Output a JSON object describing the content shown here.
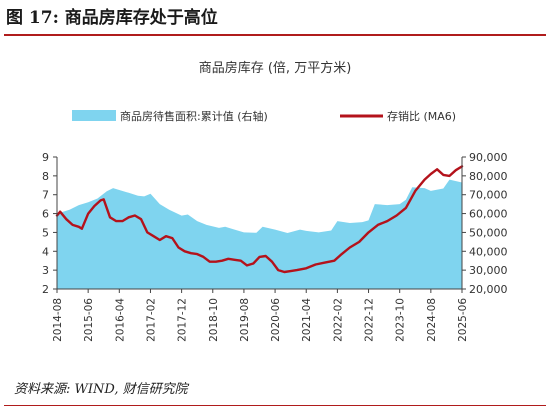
{
  "figure": {
    "title": "图 17:  商品房库存处于高位",
    "source": "资料来源: WIND, 财信研究院"
  },
  "colors": {
    "area": "#7fd4ef",
    "line": "#b4121b",
    "axis": "#444444",
    "text": "#333333",
    "title_rule": "#b01c1c"
  },
  "chart_data": {
    "type": "area",
    "title": "商品房库存 (倍, 万平方米)",
    "legend_position": "top",
    "grid": false,
    "x_ticks": [
      "2014-08",
      "2015-06",
      "2016-04",
      "2017-02",
      "2017-12",
      "2018-10",
      "2019-08",
      "2020-06",
      "2021-04",
      "2022-02",
      "2022-12",
      "2023-10",
      "2024-08",
      "2025-06"
    ],
    "x_range": [
      "2014-08",
      "2025-06"
    ],
    "y_left": {
      "range": [
        2,
        9
      ],
      "ticks": [
        "2",
        "3",
        "4",
        "5",
        "6",
        "7",
        "8",
        "9"
      ]
    },
    "y_right": {
      "range": [
        20000,
        90000
      ],
      "ticks": [
        "20,000",
        "30,000",
        "40,000",
        "50,000",
        "60,000",
        "70,000",
        "80,000",
        "90,000"
      ]
    },
    "series": [
      {
        "name": "商品房待售面积:累计值 (右轴)",
        "type": "area",
        "axis": "right",
        "points": [
          [
            "2014-08",
            60000
          ],
          [
            "2014-12",
            62000
          ],
          [
            "2015-03",
            64500
          ],
          [
            "2015-06",
            66000
          ],
          [
            "2015-09",
            68000
          ],
          [
            "2015-12",
            71800
          ],
          [
            "2016-02",
            73500
          ],
          [
            "2016-04",
            72500
          ],
          [
            "2016-07",
            71000
          ],
          [
            "2016-10",
            69500
          ],
          [
            "2016-12",
            69100
          ],
          [
            "2017-02",
            70500
          ],
          [
            "2017-05",
            65000
          ],
          [
            "2017-08",
            62000
          ],
          [
            "2017-12",
            58900
          ],
          [
            "2018-02",
            59500
          ],
          [
            "2018-05",
            56000
          ],
          [
            "2018-08",
            54000
          ],
          [
            "2018-12",
            52400
          ],
          [
            "2019-02",
            53000
          ],
          [
            "2019-05",
            51500
          ],
          [
            "2019-08",
            50000
          ],
          [
            "2019-12",
            49800
          ],
          [
            "2020-02",
            53000
          ],
          [
            "2020-06",
            51500
          ],
          [
            "2020-10",
            49700
          ],
          [
            "2021-02",
            51500
          ],
          [
            "2021-04",
            50800
          ],
          [
            "2021-08",
            50000
          ],
          [
            "2021-12",
            51000
          ],
          [
            "2022-02",
            56000
          ],
          [
            "2022-06",
            55000
          ],
          [
            "2022-10",
            55500
          ],
          [
            "2022-12",
            56400
          ],
          [
            "2023-02",
            65000
          ],
          [
            "2023-06",
            64500
          ],
          [
            "2023-10",
            65000
          ],
          [
            "2023-12",
            67300
          ],
          [
            "2024-02",
            74000
          ],
          [
            "2024-06",
            73500
          ],
          [
            "2024-08",
            72000
          ],
          [
            "2024-12",
            73300
          ],
          [
            "2025-02",
            78000
          ],
          [
            "2025-06",
            76500
          ]
        ]
      },
      {
        "name": "存销比 (MA6)",
        "type": "line",
        "axis": "left",
        "points": [
          [
            "2014-08",
            5.9
          ],
          [
            "2014-09",
            6.1
          ],
          [
            "2014-11",
            5.7
          ],
          [
            "2015-01",
            5.4
          ],
          [
            "2015-03",
            5.3
          ],
          [
            "2015-04",
            5.2
          ],
          [
            "2015-06",
            6.0
          ],
          [
            "2015-08",
            6.4
          ],
          [
            "2015-10",
            6.7
          ],
          [
            "2015-11",
            6.75
          ],
          [
            "2016-01",
            5.8
          ],
          [
            "2016-03",
            5.6
          ],
          [
            "2016-05",
            5.6
          ],
          [
            "2016-07",
            5.8
          ],
          [
            "2016-09",
            5.9
          ],
          [
            "2016-11",
            5.7
          ],
          [
            "2017-01",
            5.0
          ],
          [
            "2017-03",
            4.8
          ],
          [
            "2017-05",
            4.6
          ],
          [
            "2017-07",
            4.8
          ],
          [
            "2017-09",
            4.7
          ],
          [
            "2017-11",
            4.2
          ],
          [
            "2018-01",
            4.0
          ],
          [
            "2018-03",
            3.9
          ],
          [
            "2018-05",
            3.85
          ],
          [
            "2018-07",
            3.7
          ],
          [
            "2018-09",
            3.45
          ],
          [
            "2018-11",
            3.45
          ],
          [
            "2019-01",
            3.5
          ],
          [
            "2019-03",
            3.6
          ],
          [
            "2019-05",
            3.55
          ],
          [
            "2019-07",
            3.5
          ],
          [
            "2019-09",
            3.25
          ],
          [
            "2019-11",
            3.35
          ],
          [
            "2020-01",
            3.7
          ],
          [
            "2020-03",
            3.75
          ],
          [
            "2020-05",
            3.45
          ],
          [
            "2020-07",
            3.0
          ],
          [
            "2020-09",
            2.9
          ],
          [
            "2020-11",
            2.95
          ],
          [
            "2021-01",
            3.0
          ],
          [
            "2021-04",
            3.1
          ],
          [
            "2021-07",
            3.3
          ],
          [
            "2021-10",
            3.4
          ],
          [
            "2022-01",
            3.5
          ],
          [
            "2022-03",
            3.8
          ],
          [
            "2022-06",
            4.2
          ],
          [
            "2022-09",
            4.5
          ],
          [
            "2022-12",
            5.0
          ],
          [
            "2023-03",
            5.4
          ],
          [
            "2023-06",
            5.6
          ],
          [
            "2023-09",
            5.9
          ],
          [
            "2023-12",
            6.3
          ],
          [
            "2024-03",
            7.2
          ],
          [
            "2024-06",
            7.8
          ],
          [
            "2024-08",
            8.1
          ],
          [
            "2024-10",
            8.35
          ],
          [
            "2024-12",
            8.05
          ],
          [
            "2025-02",
            8.0
          ],
          [
            "2025-04",
            8.3
          ],
          [
            "2025-06",
            8.5
          ]
        ]
      }
    ]
  }
}
